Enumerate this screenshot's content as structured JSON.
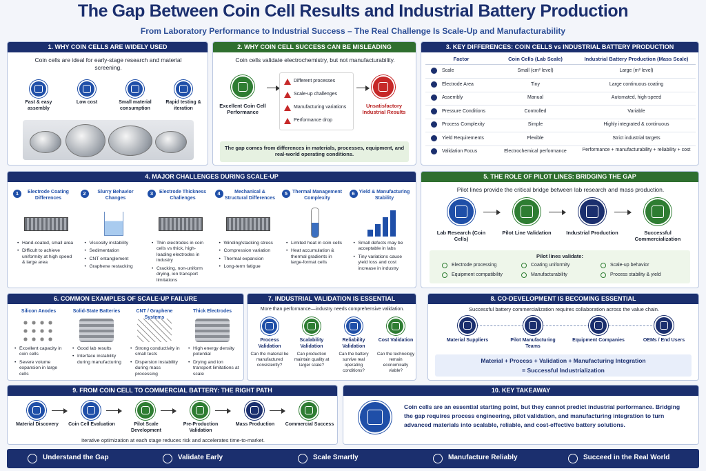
{
  "header": {
    "title": "The Gap Between Coin Cell Results and Industrial Battery Production",
    "subtitle": "From Laboratory Performance to Industrial Success – The Real Challenge Is Scale-Up and Manufacturability"
  },
  "s1": {
    "heading": "1. WHY COIN CELLS ARE WIDELY USED",
    "intro": "Coin cells are ideal for early-stage research and material screening.",
    "items": [
      "Fast & easy assembly",
      "Low cost",
      "Small material consumption",
      "Rapid testing & iteration"
    ]
  },
  "s2": {
    "heading": "2. WHY COIN CELL SUCCESS CAN BE MISLEADING",
    "intro": "Coin cells validate electrochemistry, but not manufacturability.",
    "left": "Excellent Coin Cell Performance",
    "warnings": [
      "Different processes",
      "Scale-up challenges",
      "Manufacturing variations",
      "Performance drop"
    ],
    "right": "Unsatisfactory Industrial Results",
    "note": "The gap comes from differences in materials, processes, equipment, and real-world operating conditions."
  },
  "s3": {
    "heading": "3. KEY DIFFERENCES: COIN CELLS vs INDUSTRIAL BATTERY PRODUCTION",
    "columns": [
      "Factor",
      "Coin Cells (Lab Scale)",
      "Industrial Battery Production (Mass Scale)"
    ],
    "rows": [
      [
        "Scale",
        "Small (cm² level)",
        "Large (m² level)"
      ],
      [
        "Electrode Area",
        "Tiny",
        "Large continuous coating"
      ],
      [
        "Assembly",
        "Manual",
        "Automated, high-speed"
      ],
      [
        "Pressure Conditions",
        "Controlled",
        "Variable"
      ],
      [
        "Process Complexity",
        "Simple",
        "Highly integrated & continuous"
      ],
      [
        "Yield Requirements",
        "Flexible",
        "Strict industrial targets"
      ],
      [
        "Validation Focus",
        "Electrochemical performance",
        "Performance + manufacturability + reliability + cost"
      ]
    ]
  },
  "s4": {
    "heading": "4. MAJOR CHALLENGES DURING SCALE-UP",
    "items": [
      {
        "number": "1",
        "title": "Electrode Coating Differences",
        "bullets": [
          "Hand-coated, small area",
          "Difficult to achieve uniformity at high speed & large area"
        ]
      },
      {
        "number": "2",
        "title": "Slurry Behavior Changes",
        "bullets": [
          "Viscosity instability",
          "Sedimentation",
          "CNT entanglement",
          "Graphene restacking"
        ]
      },
      {
        "number": "3",
        "title": "Electrode Thickness Challenges",
        "bullets": [
          "Thin electrodes in coin cells vs thick, high-loading electrodes in industry",
          "Cracking, non-uniform drying, ion transport limitations"
        ]
      },
      {
        "number": "4",
        "title": "Mechanical & Structural Differences",
        "bullets": [
          "Winding/stacking stress",
          "Compression variation",
          "Thermal expansion",
          "Long-term fatigue"
        ]
      },
      {
        "number": "5",
        "title": "Thermal Management Complexity",
        "bullets": [
          "Limited heat in coin cells",
          "Heat accumulation & thermal gradients in large-format cells"
        ]
      },
      {
        "number": "6",
        "title": "Yield & Manufacturing Stability",
        "bullets": [
          "Small defects may be acceptable in labs",
          "Tiny variations cause yield loss and cost increase in industry"
        ]
      }
    ]
  },
  "s5": {
    "heading": "5. THE ROLE OF PILOT LINES: BRIDGING THE GAP",
    "intro": "Pilot lines provide the critical bridge between lab research and mass production.",
    "steps": [
      "Lab Research (Coin Cells)",
      "Pilot Line Validation",
      "Industrial Production",
      "Successful Commercialization"
    ],
    "validate_title": "Pilot lines validate:",
    "validate": [
      "Electrode processing",
      "Coating uniformity",
      "Scale-up behavior",
      "Equipment compatibility",
      "Manufacturability",
      "Process stability & yield"
    ]
  },
  "s6": {
    "heading": "6. COMMON EXAMPLES OF SCALE-UP FAILURE",
    "items": [
      {
        "title": "Silicon Anodes",
        "bullets": [
          "Excellent capacity in coin cells",
          "Severe volume expansion in large cells"
        ]
      },
      {
        "title": "Solid-State Batteries",
        "bullets": [
          "Good lab results",
          "Interface instability during manufacturing"
        ]
      },
      {
        "title": "CNT / Graphene Systems",
        "bullets": [
          "Strong conductivity in small tests",
          "Dispersion instability during mass processing"
        ]
      },
      {
        "title": "Thick Electrodes",
        "bullets": [
          "High energy density potential",
          "Drying and ion transport limitations at scale"
        ]
      }
    ]
  },
  "s7": {
    "heading": "7. INDUSTRIAL VALIDATION IS ESSENTIAL",
    "intro": "More than performance—industry needs comprehensive validation.",
    "items": [
      {
        "title": "Process Validation",
        "question": "Can the material be manufactured consistently?"
      },
      {
        "title": "Scalability Validation",
        "question": "Can production maintain quality at larger scale?"
      },
      {
        "title": "Reliability Validation",
        "question": "Can the battery survive real operating conditions?"
      },
      {
        "title": "Cost Validation",
        "question": "Can the technology remain economically viable?"
      }
    ]
  },
  "s8": {
    "heading": "8. CO-DEVELOPMENT IS BECOMING ESSENTIAL",
    "intro": "Successful battery commercialization requires collaboration across the value chain.",
    "items": [
      "Material Suppliers",
      "Pilot Manufacturing Teams",
      "Equipment Companies",
      "OEMs / End Users"
    ],
    "formula": "Material + Process + Validation + Manufacturing Integration",
    "result": "= Successful Industrialization"
  },
  "s9": {
    "heading": "9. FROM COIN CELL TO COMMERCIAL BATTERY: THE RIGHT PATH",
    "steps": [
      "Material Discovery",
      "Coin Cell Evaluation",
      "Pilot Scale Development",
      "Pre-Production Validation",
      "Mass Production",
      "Commercial Success"
    ],
    "note": "Iterative optimization at each stage reduces risk and accelerates time-to-market."
  },
  "s10": {
    "heading": "10. KEY TAKEAWAY",
    "text": "Coin cells are an essential starting point, but they cannot predict industrial performance. Bridging the gap requires process engineering, pilot validation, and manufacturing integration to turn advanced materials into scalable, reliable, and cost-effective battery solutions."
  },
  "footer": [
    "Understand the Gap",
    "Validate Early",
    "Scale Smartly",
    "Manufacture Reliably",
    "Succeed in the Real World"
  ]
}
